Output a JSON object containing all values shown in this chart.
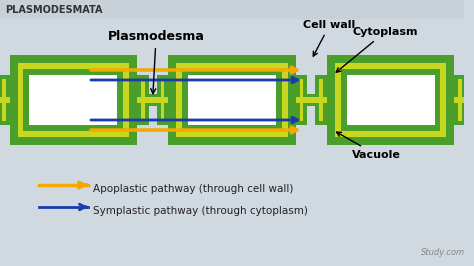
{
  "title": "PLASMODESMATA",
  "bg_color": "#d0d8e0",
  "header_color": "#c8d0d8",
  "cell_wall_color": "#4a9e2a",
  "cytoplasm_color": "#c8d820",
  "vacuole_color": "#ffffff",
  "orange_arrow_color": "#f5a800",
  "blue_arrow_color": "#1a3aad",
  "dark_green": "#2d6e10",
  "labels": {
    "plasmodesma": "Plasmodesma",
    "cell_wall": "Cell wall",
    "cytoplasm": "Cytoplasm",
    "vacuole": "Vacuole"
  },
  "legend_labels": {
    "apoplastic": "Apoplastic pathway (through cell wall)",
    "symplastic": "Symplastic pathway (through cytoplasm)"
  },
  "watermark": "Study.com"
}
